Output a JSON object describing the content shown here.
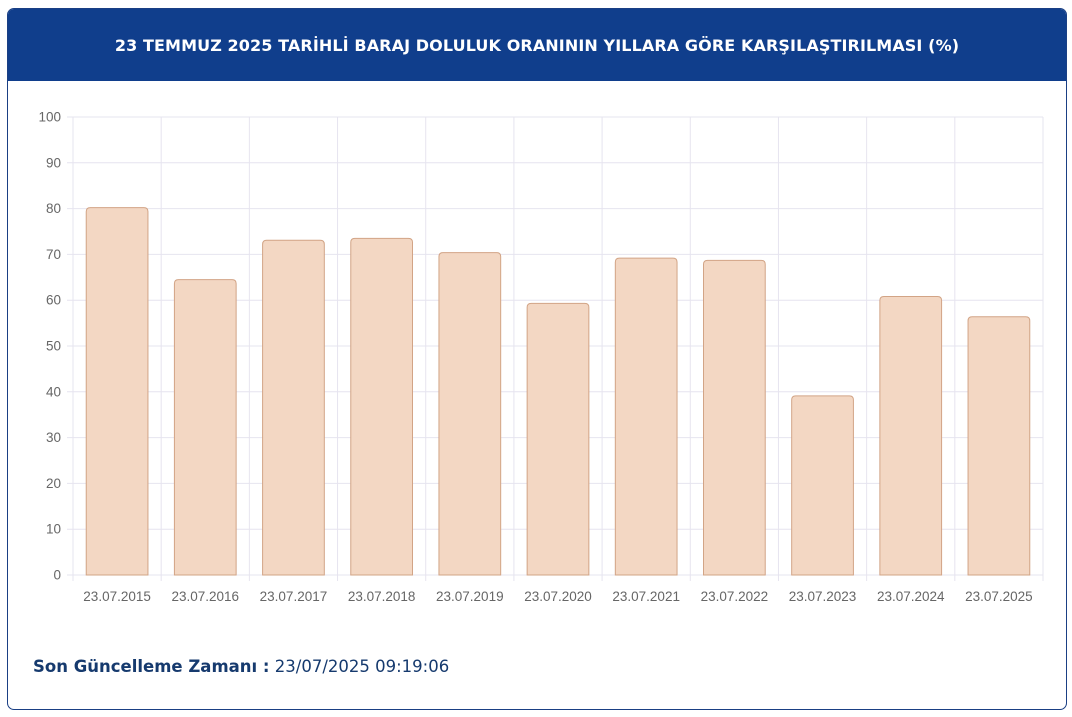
{
  "header": {
    "title": "23 TEMMUZ 2025 TARİHLİ BARAJ DOLULUK ORANININ YILLARA GÖRE KARŞILAŞTIRILMASI (%)"
  },
  "chart_data": {
    "type": "bar",
    "title": "23 TEMMUZ 2025 TARİHLİ BARAJ DOLULUK ORANININ YILLARA GÖRE KARŞILAŞTIRILMASI (%)",
    "categories": [
      "23.07.2015",
      "23.07.2016",
      "23.07.2017",
      "23.07.2018",
      "23.07.2019",
      "23.07.2020",
      "23.07.2021",
      "23.07.2022",
      "23.07.2023",
      "23.07.2024",
      "23.07.2025"
    ],
    "values": [
      80.2,
      64.5,
      73.1,
      73.5,
      70.4,
      59.3,
      69.2,
      68.7,
      39.1,
      60.8,
      56.4
    ],
    "yticks": [
      "0",
      "10",
      "20",
      "30",
      "40",
      "50",
      "60",
      "70",
      "80",
      "90",
      "100"
    ],
    "ylim": [
      0,
      100
    ],
    "xlabel": "",
    "ylabel": "",
    "grid": true,
    "colors": {
      "bar_fill": "#f3d7c3",
      "bar_stroke": "#d2a486",
      "grid": "#e6e4ef"
    }
  },
  "footer": {
    "label": "Son Güncelleme Zamanı :",
    "value": "23/07/2025 09:19:06"
  },
  "colors": {
    "header_bg": "#103e8c",
    "header_text": "#ffffff",
    "footer_text": "#163a6e"
  }
}
